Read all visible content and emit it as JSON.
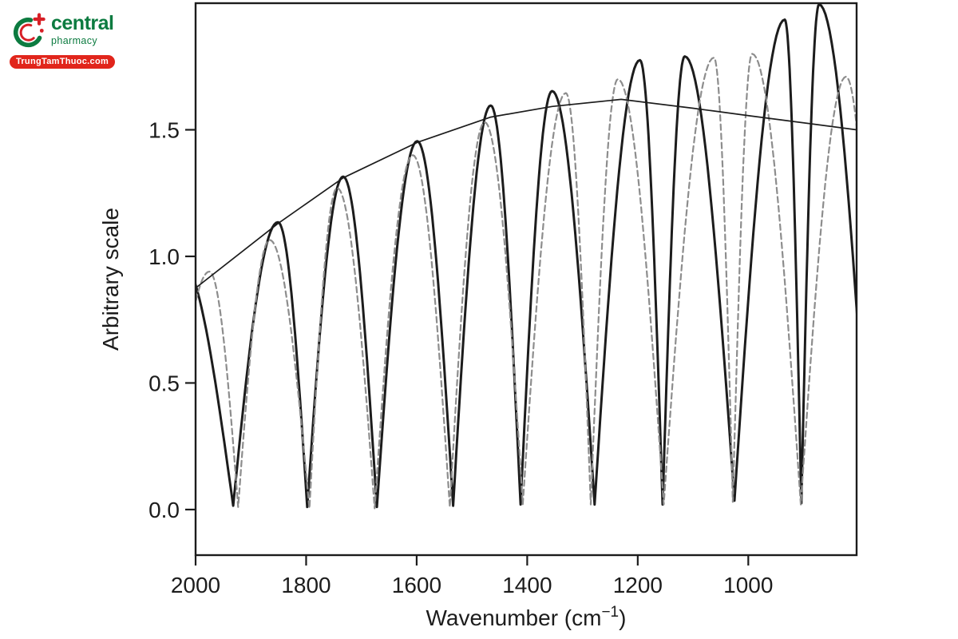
{
  "logo": {
    "brand": "central",
    "subtitle": "pharmacy",
    "banner": "TrungTamThuoc.com",
    "green": "#0c7b40",
    "red": "#d71f26",
    "banner_bg": "#e1251b"
  },
  "chart_data": {
    "type": "line",
    "title": "",
    "xlabel": "Wavenumber (cm⁻¹)",
    "xlabel_parts": {
      "prefix": "Wavenumber (cm",
      "superscript": "−1",
      "suffix": ")"
    },
    "ylabel": "Arbitrary scale",
    "x_axis": {
      "min": 804,
      "max": 2000,
      "reversed": true,
      "ticks": [
        2000,
        1800,
        1600,
        1400,
        1200,
        1000
      ],
      "unit": "cm-1"
    },
    "y_axis": {
      "min": -0.18,
      "max": 2.0,
      "ticks": [
        0.0,
        0.5,
        1.0,
        1.5
      ],
      "tick_labels": [
        "0.0",
        "0.5",
        "1.0",
        "1.5"
      ]
    },
    "grid": false,
    "legend": null,
    "frame_color": "#1c1c1c",
    "series": [
      {
        "name": "interference-fringes-solid",
        "style": "solid",
        "color": "#1c1c1c",
        "width": 3,
        "shape": "abs-cosine fringes: quarter-cosine arcs between listed extrema (alternating peak/valley)",
        "first_extremum": "max",
        "extrema": [
          [
            2030,
            1.0
          ],
          [
            1932,
            0.015
          ],
          [
            1851,
            1.135
          ],
          [
            1798,
            0.01
          ],
          [
            1733,
            1.315
          ],
          [
            1672,
            0.01
          ],
          [
            1599,
            1.455
          ],
          [
            1534,
            0.015
          ],
          [
            1466,
            1.596
          ],
          [
            1412,
            0.02
          ],
          [
            1355,
            1.653
          ],
          [
            1278,
            0.02
          ],
          [
            1196,
            1.775
          ],
          [
            1155,
            0.02
          ],
          [
            1115,
            1.79
          ],
          [
            1025,
            0.035
          ],
          [
            934,
            1.935
          ],
          [
            904,
            0.025
          ],
          [
            872,
            1.995
          ],
          [
            780,
            0.0
          ]
        ]
      },
      {
        "name": "interference-fringes-dashed",
        "style": "dashed",
        "color": "#8d8d8d",
        "width": 2.2,
        "dash": [
          7,
          4.5
        ],
        "shape": "abs-cosine fringes: quarter-cosine arcs between listed extrema (alternating valley/peak)",
        "first_extremum": "min",
        "extrema": [
          [
            2052,
            0.0
          ],
          [
            1975,
            0.94
          ],
          [
            1923,
            0.01
          ],
          [
            1866,
            1.065
          ],
          [
            1794,
            0.005
          ],
          [
            1744,
            1.27
          ],
          [
            1676,
            0.005
          ],
          [
            1607,
            1.4
          ],
          [
            1540,
            0.01
          ],
          [
            1477,
            1.53
          ],
          [
            1408,
            0.02
          ],
          [
            1330,
            1.645
          ],
          [
            1285,
            0.02
          ],
          [
            1236,
            1.7
          ],
          [
            1153,
            0.02
          ],
          [
            1062,
            1.785
          ],
          [
            1028,
            0.03
          ],
          [
            993,
            1.8
          ],
          [
            905,
            0.02
          ],
          [
            823,
            1.71
          ],
          [
            761,
            0.0
          ]
        ]
      },
      {
        "name": "envelope-line",
        "style": "thin-solid",
        "color": "#1c1c1c",
        "width": 1.7,
        "points": [
          [
            2000,
            0.875
          ],
          [
            1851,
            1.13
          ],
          [
            1733,
            1.31
          ],
          [
            1599,
            1.45
          ],
          [
            1466,
            1.55
          ],
          [
            1355,
            1.592
          ],
          [
            1230,
            1.62
          ],
          [
            1100,
            1.585
          ],
          [
            996,
            1.555
          ],
          [
            804,
            1.5
          ]
        ]
      }
    ]
  }
}
